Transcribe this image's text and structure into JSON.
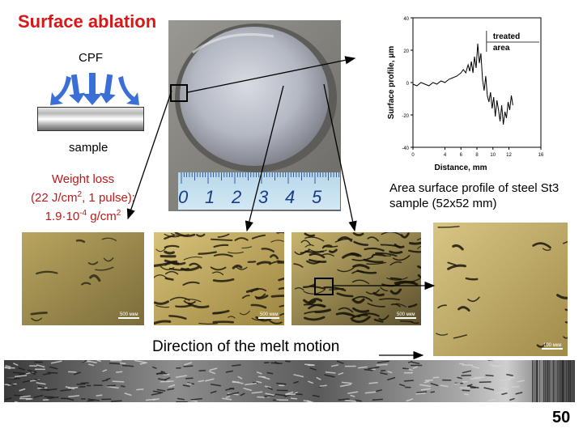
{
  "title": "Surface ablation",
  "schematic": {
    "cpf_label": "CPF",
    "sample_label": "sample"
  },
  "weight_loss": {
    "line1": "Weight loss",
    "line2_a": "(22 J/cm",
    "line2_sup": "2",
    "line2_b": ", 1 pulse):",
    "line3_a": "1.9·10",
    "line3_sup": "-4",
    "line3_b": " g/cm",
    "line3_sup2": "2"
  },
  "area_caption": "Area surface profile of steel St3 sample (52x52 mm)",
  "direction_caption": "Direction of the melt motion",
  "ruler_numbers": [
    "0",
    "1",
    "2",
    "3",
    "4",
    "5"
  ],
  "scale_bars": [
    "500 мкм",
    "500 мкм",
    "500 мкм",
    "100 мкм"
  ],
  "page_number": "50",
  "colors": {
    "title": "#d81818",
    "weight_text": "#c01818",
    "arrows": "#3a6fd8",
    "profile": "#000000"
  },
  "chart_data": {
    "type": "line",
    "xlabel": "Distance, mm",
    "ylabel": "Surface profile, μm",
    "xlim": [
      0,
      16
    ],
    "ylim": [
      -40,
      40
    ],
    "xticks": [
      "0",
      "4",
      "6",
      "8",
      "10",
      "12",
      "16"
    ],
    "xtick_values": [
      0,
      4,
      6,
      8,
      10,
      12,
      16
    ],
    "yticks": [
      "40",
      "20",
      "0",
      "-20",
      "-40"
    ],
    "ytick_values": [
      40,
      20,
      0,
      -20,
      -40
    ],
    "annotation": {
      "line1": "treated",
      "line2": "area",
      "x_start": 9.2
    },
    "series": [
      {
        "x": [
          0,
          0.5,
          1,
          1.5,
          2,
          2.5,
          3,
          3.5,
          4,
          4.5,
          5,
          5.5,
          6,
          6.3,
          6.6,
          6.9,
          7.1,
          7.3,
          7.5,
          7.7,
          7.9,
          8.1,
          8.3,
          8.5,
          8.7,
          8.9,
          9.1,
          9.3,
          9.5,
          9.7,
          9.9,
          10.1,
          10.3,
          10.5,
          10.7,
          10.9,
          11.1,
          11.3,
          11.5,
          11.7,
          11.9,
          12.1,
          12.3,
          12.5
        ],
        "y": [
          -1,
          -2,
          0,
          -1,
          -2,
          0,
          -1,
          1,
          0,
          2,
          3,
          4,
          6,
          8,
          6,
          11,
          7,
          13,
          6,
          16,
          9,
          24,
          12,
          18,
          2,
          -5,
          4,
          -8,
          -12,
          -6,
          -16,
          -9,
          -21,
          -11,
          -17,
          -24,
          -14,
          -26,
          -18,
          -22,
          -12,
          -17,
          -8,
          -14
        ]
      }
    ]
  }
}
